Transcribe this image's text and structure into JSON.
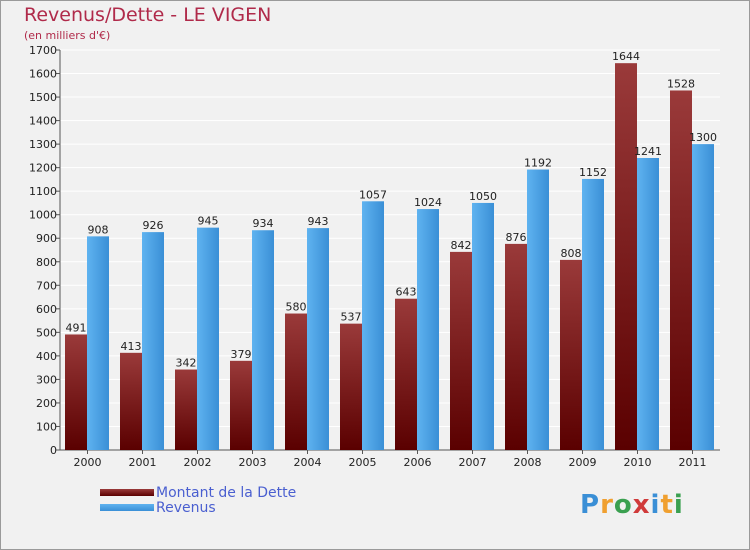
{
  "header": {
    "title": "Revenus/Dette - LE VIGEN",
    "subtitle": "(en milliers d'€)"
  },
  "colors": {
    "background": "#f1f1f1",
    "dette_top": "#9a3a3a",
    "dette_bottom": "#5a0000",
    "revenus_top": "#5fb3f0",
    "revenus_bottom": "#3a8fd6",
    "title": "#b02a4a",
    "legend_text": "#4a5fd0"
  },
  "legend": {
    "dette_label": "Montant de la Dette",
    "revenus_label": "Revenus"
  },
  "logo": {
    "text": "Proxiti",
    "icon": "proxiti-logo"
  },
  "chart_data": {
    "type": "bar",
    "title": "Revenus/Dette - LE VIGEN",
    "subtitle": "(en milliers d'€)",
    "categories": [
      "2000",
      "2001",
      "2002",
      "2003",
      "2004",
      "2005",
      "2006",
      "2007",
      "2008",
      "2009",
      "2010",
      "2011"
    ],
    "series": [
      {
        "name": "Montant de la Dette",
        "values": [
          491,
          413,
          342,
          379,
          580,
          537,
          643,
          842,
          876,
          808,
          1644,
          1528
        ]
      },
      {
        "name": "Revenus",
        "values": [
          908,
          926,
          945,
          934,
          943,
          1057,
          1024,
          1050,
          1192,
          1152,
          1241,
          1300
        ]
      }
    ],
    "ylim": [
      0,
      1700
    ],
    "yticks": [
      0,
      100,
      200,
      300,
      400,
      500,
      600,
      700,
      800,
      900,
      1000,
      1100,
      1200,
      1300,
      1400,
      1500,
      1600,
      1700
    ],
    "grid": true,
    "legend_position": "bottom-left"
  }
}
